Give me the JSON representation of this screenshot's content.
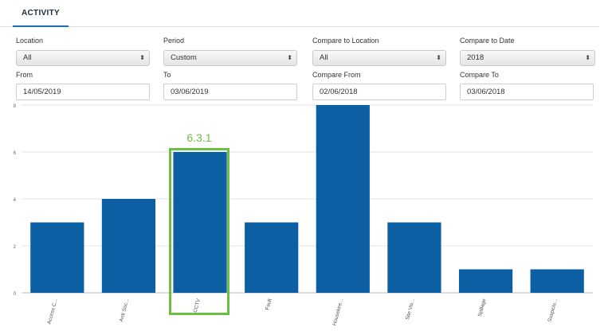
{
  "tabs": {
    "activity_label": "ACTIVITY"
  },
  "filters": {
    "location": {
      "label": "Location",
      "value": "All"
    },
    "period": {
      "label": "Period",
      "value": "Custom"
    },
    "compare_location": {
      "label": "Compare to Location",
      "value": "All"
    },
    "compare_date": {
      "label": "Compare to Date",
      "value": "2018"
    },
    "from": {
      "label": "From",
      "value": "14/05/2019"
    },
    "to": {
      "label": "To",
      "value": "03/06/2019"
    },
    "compare_from": {
      "label": "Compare From",
      "value": "02/06/2018"
    },
    "compare_to": {
      "label": "Compare To",
      "value": "03/06/2018"
    }
  },
  "annotation": {
    "text": "6.3.1",
    "color": "#6fbe44"
  },
  "chart_data": {
    "type": "bar",
    "categories": [
      "Access C...",
      "Anti Soc...",
      "CCTV",
      "Fault",
      "Housekee...",
      "Site Vis...",
      "Spillage",
      "Suspicio..."
    ],
    "values": [
      3,
      4,
      6,
      3,
      8,
      3,
      1,
      1
    ],
    "ylim": [
      0,
      8
    ],
    "yticks": [
      0,
      2,
      4,
      6,
      8
    ],
    "grid": true,
    "bar_color": "#0d5fa4"
  }
}
